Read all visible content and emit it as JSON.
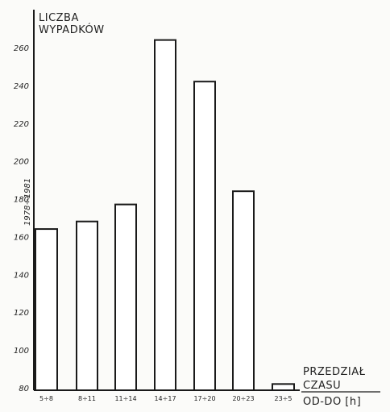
{
  "chart_data": {
    "type": "bar",
    "title": "",
    "ylabel_lines": [
      "LICZBA",
      "WYPADKÓW"
    ],
    "xlabel_lines": [
      "PRZEDZIAŁ",
      "CZASU",
      "OD-DO [h]"
    ],
    "categories": [
      "5÷8",
      "8÷11",
      "11÷14",
      "14÷17",
      "17÷20",
      "20÷23",
      "23÷5"
    ],
    "values": [
      164,
      168,
      177,
      264,
      242,
      184,
      82
    ],
    "ylim": [
      80,
      280
    ],
    "yticks": [
      80,
      100,
      120,
      140,
      160,
      180,
      200,
      220,
      240,
      260
    ],
    "annotation": "1978÷1981",
    "grid": false,
    "bar_fill": "#ffffff",
    "ink": "#1a1a1a"
  }
}
